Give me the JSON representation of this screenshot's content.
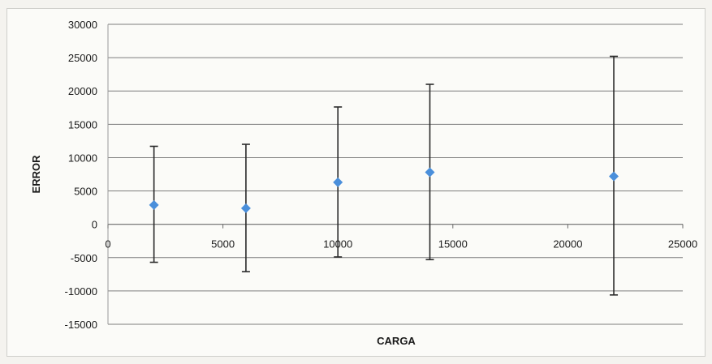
{
  "chart_data": {
    "type": "scatter",
    "title": "",
    "xlabel": "CARGA",
    "ylabel": "ERROR",
    "xlim": [
      0,
      25000
    ],
    "ylim": [
      -15000,
      30000
    ],
    "x_ticks": [
      0,
      5000,
      10000,
      15000,
      20000,
      25000
    ],
    "y_ticks": [
      -15000,
      -10000,
      -5000,
      0,
      5000,
      10000,
      15000,
      20000,
      25000,
      30000
    ],
    "grid": "horizontal",
    "legend": "none",
    "marker": "diamond",
    "marker_color": "#4a8fdb",
    "errorbar_color": "#2a2a2a",
    "series": [
      {
        "points": [
          {
            "x": 2000,
            "y": 2900,
            "err_low": 8600,
            "err_high": 8800
          },
          {
            "x": 6000,
            "y": 2400,
            "err_low": 9500,
            "err_high": 9600
          },
          {
            "x": 10000,
            "y": 6300,
            "err_low": 11200,
            "err_high": 11300
          },
          {
            "x": 14000,
            "y": 7800,
            "err_low": 13100,
            "err_high": 13200
          },
          {
            "x": 22000,
            "y": 7200,
            "err_low": 17800,
            "err_high": 18000
          }
        ]
      }
    ]
  }
}
